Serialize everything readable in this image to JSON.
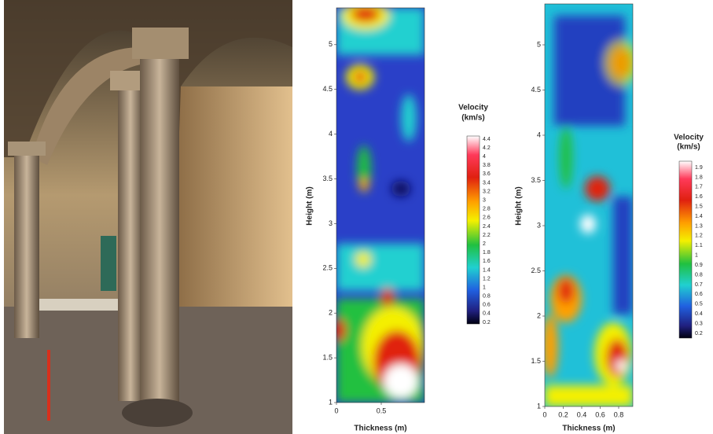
{
  "panels": [
    {
      "y_label": "Height (m)",
      "x_label": "Thickness (m)",
      "y_ticks": [
        "1",
        "1.5",
        "2",
        "2.5",
        "3",
        "3.5",
        "4",
        "4.5",
        "5"
      ],
      "x_ticks": [
        "0",
        "0.5"
      ],
      "colorbar": {
        "title": "Velocity",
        "unit": "(km/s)",
        "ticks": [
          "4.4",
          "4.2",
          "4",
          "3.8",
          "3.6",
          "3.4",
          "3.2",
          "3",
          "2.8",
          "2.6",
          "2.4",
          "2.2",
          "2",
          "1.8",
          "1.6",
          "1.4",
          "1.2",
          "1",
          "0.8",
          "0.6",
          "0.4",
          "0.2"
        ]
      }
    },
    {
      "y_label": "Height (m)",
      "x_label": "Thickness (m)",
      "y_ticks": [
        "1",
        "1.5",
        "2",
        "2.5",
        "3",
        "3.5",
        "4",
        "4.5",
        "5"
      ],
      "x_ticks": [
        "0",
        "0.2",
        "0.4",
        "0.6",
        "0.8"
      ],
      "colorbar": {
        "title": "Velocity",
        "unit": "(km/s)",
        "ticks": [
          "1.9",
          "1.8",
          "1.7",
          "1.6",
          "1.5",
          "1.4",
          "1.3",
          "1.2",
          "1.1",
          "1",
          "0.9",
          "0.8",
          "0.7",
          "0.6",
          "0.5",
          "0.4",
          "0.3",
          "0.2"
        ]
      }
    }
  ]
}
